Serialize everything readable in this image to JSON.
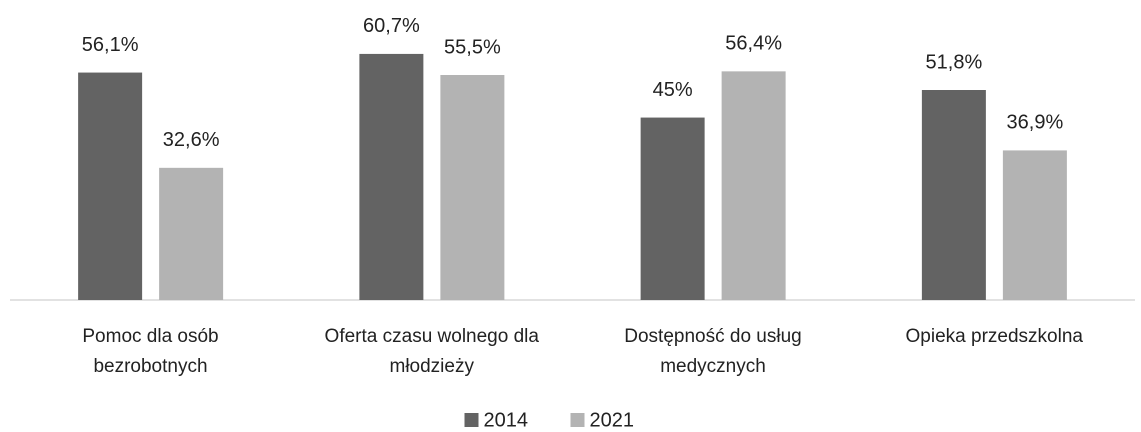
{
  "chart_data": {
    "type": "bar",
    "categories": [
      "Pomoc dla osób\nbezrobotnych",
      "Oferta czasu wolnego dla\nmłodzieży",
      "Dostępność do usług\nmedycznych",
      "Opieka przedszkolna"
    ],
    "series": [
      {
        "name": "2014",
        "color": "#636363",
        "values": [
          56.1,
          60.7,
          45,
          51.8
        ],
        "value_labels": [
          "56,1%",
          "60,7%",
          "45%",
          "51,8%"
        ]
      },
      {
        "name": "2021",
        "color": "#b3b3b3",
        "values": [
          32.6,
          55.5,
          56.4,
          36.9
        ],
        "value_labels": [
          "32,6%",
          "55,5%",
          "56,4%",
          "36,9%"
        ]
      }
    ],
    "ylim": [
      0,
      74
    ],
    "legend": "bottom"
  }
}
